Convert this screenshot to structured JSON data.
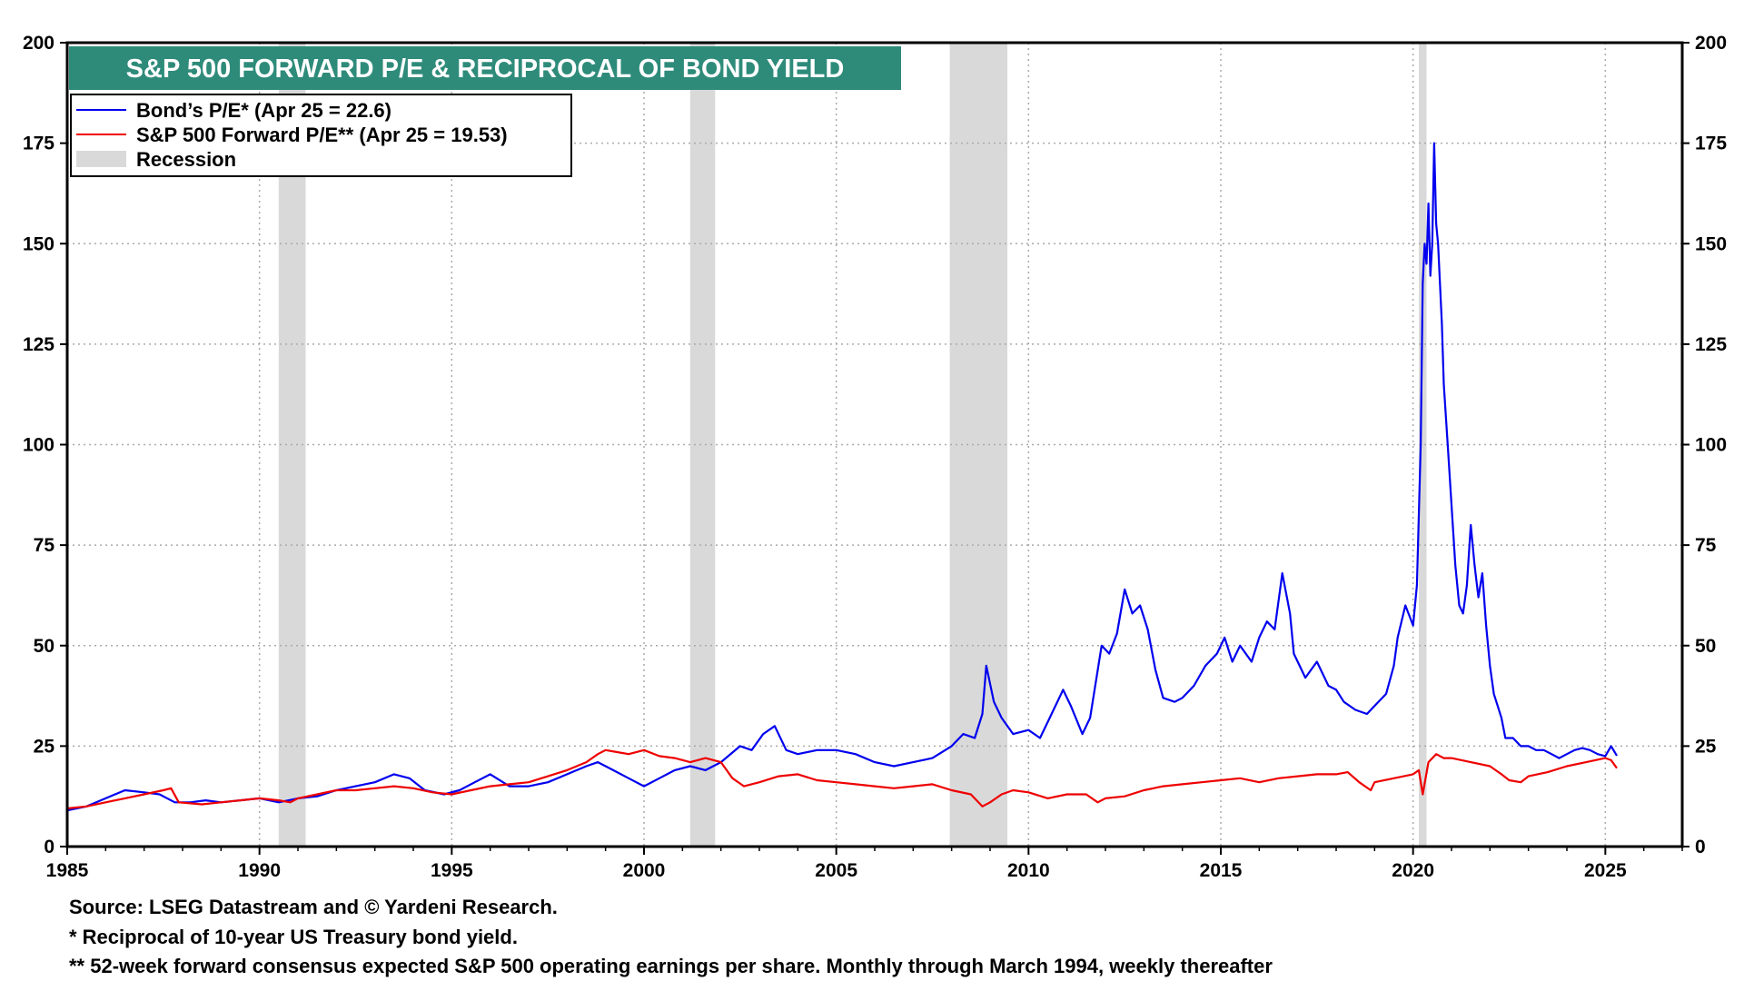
{
  "chart_data": {
    "type": "line",
    "title": "S&P 500 FORWARD P/E & RECIPROCAL OF BOND YIELD",
    "xlim": [
      1985,
      2027
    ],
    "ylim": [
      0,
      200
    ],
    "x_ticks": [
      1985,
      1990,
      1995,
      2000,
      2005,
      2010,
      2015,
      2020,
      2025
    ],
    "y_ticks": [
      0,
      25,
      50,
      75,
      100,
      125,
      150,
      175,
      200
    ],
    "grid": true,
    "legend_position": "top-left",
    "colors": {
      "bond": "#0000ee",
      "sp500": "#ee0000",
      "recession": "#d9d9d9",
      "title_bg": "#2e8b7a"
    },
    "legend": {
      "bond": "Bond’s P/E* (Apr 25 = 22.6)",
      "sp500": "S&P 500 Forward P/E**  (Apr 25 = 19.53)",
      "recession": "Recession"
    },
    "recessions": [
      [
        1990.5,
        1991.2
      ],
      [
        2001.2,
        2001.85
      ],
      [
        2007.95,
        2009.45
      ],
      [
        2020.15,
        2020.35
      ]
    ],
    "series": [
      {
        "name": "Bond’s P/E*",
        "x": [
          1985.0,
          1985.5,
          1986.0,
          1986.5,
          1987.0,
          1987.4,
          1987.8,
          1988.2,
          1988.6,
          1989.0,
          1989.5,
          1990.0,
          1990.5,
          1991.0,
          1991.5,
          1992.0,
          1992.5,
          1993.0,
          1993.5,
          1993.9,
          1994.3,
          1994.8,
          1995.2,
          1995.6,
          1996.0,
          1996.5,
          1997.0,
          1997.5,
          1998.0,
          1998.5,
          1998.8,
          1999.2,
          1999.6,
          2000.0,
          2000.4,
          2000.8,
          2001.2,
          2001.6,
          2002.0,
          2002.5,
          2002.8,
          2003.1,
          2003.4,
          2003.7,
          2004.0,
          2004.5,
          2005.0,
          2005.5,
          2006.0,
          2006.5,
          2007.0,
          2007.5,
          2008.0,
          2008.3,
          2008.6,
          2008.8,
          2008.9,
          2009.1,
          2009.3,
          2009.6,
          2010.0,
          2010.3,
          2010.6,
          2010.9,
          2011.1,
          2011.4,
          2011.6,
          2011.9,
          2012.1,
          2012.3,
          2012.5,
          2012.7,
          2012.9,
          2013.1,
          2013.3,
          2013.5,
          2013.8,
          2014.0,
          2014.3,
          2014.6,
          2014.9,
          2015.1,
          2015.3,
          2015.5,
          2015.8,
          2016.0,
          2016.2,
          2016.4,
          2016.6,
          2016.8,
          2016.9,
          2017.2,
          2017.5,
          2017.8,
          2018.0,
          2018.2,
          2018.5,
          2018.8,
          2019.0,
          2019.3,
          2019.5,
          2019.6,
          2019.8,
          2020.0,
          2020.1,
          2020.2,
          2020.25,
          2020.3,
          2020.35,
          2020.4,
          2020.45,
          2020.5,
          2020.55,
          2020.6,
          2020.65,
          2020.7,
          2020.75,
          2020.8,
          2020.9,
          2021.0,
          2021.1,
          2021.2,
          2021.3,
          2021.4,
          2021.5,
          2021.6,
          2021.7,
          2021.8,
          2021.9,
          2022.0,
          2022.1,
          2022.2,
          2022.3,
          2022.4,
          2022.6,
          2022.8,
          2023.0,
          2023.2,
          2023.4,
          2023.6,
          2023.8,
          2024.0,
          2024.2,
          2024.4,
          2024.6,
          2024.8,
          2025.0,
          2025.15,
          2025.3
        ],
        "values": [
          9,
          10,
          12,
          14,
          13.5,
          13,
          11,
          11,
          11.5,
          11,
          11.5,
          12,
          11,
          12,
          12.5,
          14,
          15,
          16,
          18,
          17,
          14,
          13,
          14,
          16,
          18,
          15,
          15,
          16,
          18,
          20,
          21,
          19,
          17,
          15,
          17,
          19,
          20,
          19,
          21,
          25,
          24,
          28,
          30,
          24,
          23,
          24,
          24,
          23,
          21,
          20,
          21,
          22,
          25,
          28,
          27,
          33,
          45,
          36,
          32,
          28,
          29,
          27,
          33,
          39,
          35,
          28,
          32,
          50,
          48,
          53,
          64,
          58,
          60,
          54,
          44,
          37,
          36,
          37,
          40,
          45,
          48,
          52,
          46,
          50,
          46,
          52,
          56,
          54,
          68,
          58,
          48,
          42,
          46,
          40,
          39,
          36,
          34,
          33,
          35,
          38,
          45,
          52,
          60,
          55,
          65,
          100,
          140,
          150,
          145,
          160,
          142,
          150,
          175,
          155,
          150,
          140,
          130,
          115,
          100,
          85,
          70,
          60,
          58,
          65,
          80,
          70,
          62,
          68,
          55,
          45,
          38,
          35,
          32,
          27,
          27,
          25,
          25,
          24,
          24,
          23,
          22,
          23,
          24,
          24.5,
          24,
          23,
          22.5,
          25,
          22.6
        ]
      },
      {
        "name": "S&P 500 Forward P/E**",
        "x": [
          1985.0,
          1985.5,
          1986.0,
          1986.5,
          1987.0,
          1987.5,
          1987.7,
          1987.9,
          1988.5,
          1989.0,
          1989.5,
          1990.0,
          1990.5,
          1990.8,
          1991.0,
          1991.5,
          1992.0,
          1992.5,
          1993.0,
          1993.5,
          1994.0,
          1994.5,
          1995.0,
          1995.5,
          1996.0,
          1996.5,
          1997.0,
          1997.5,
          1998.0,
          1998.5,
          1998.8,
          1999.0,
          1999.3,
          1999.6,
          2000.0,
          2000.4,
          2000.8,
          2001.2,
          2001.6,
          2002.0,
          2002.3,
          2002.6,
          2003.0,
          2003.5,
          2004.0,
          2004.5,
          2005.0,
          2005.5,
          2006.0,
          2006.5,
          2007.0,
          2007.5,
          2008.0,
          2008.5,
          2008.8,
          2009.0,
          2009.3,
          2009.6,
          2010.0,
          2010.5,
          2011.0,
          2011.5,
          2011.8,
          2012.0,
          2012.5,
          2013.0,
          2013.5,
          2014.0,
          2014.5,
          2015.0,
          2015.5,
          2016.0,
          2016.5,
          2017.0,
          2017.5,
          2018.0,
          2018.3,
          2018.6,
          2018.9,
          2019.0,
          2019.5,
          2020.0,
          2020.15,
          2020.25,
          2020.4,
          2020.6,
          2020.8,
          2021.0,
          2021.5,
          2022.0,
          2022.3,
          2022.5,
          2022.8,
          2023.0,
          2023.5,
          2024.0,
          2024.5,
          2025.0,
          2025.15,
          2025.3
        ],
        "values": [
          9.5,
          10,
          11,
          12,
          13,
          14,
          14.5,
          11,
          10.5,
          11,
          11.5,
          12,
          11.5,
          11,
          12,
          13,
          14,
          14,
          14.5,
          15,
          14.5,
          13.5,
          13,
          14,
          15,
          15.5,
          16,
          17.5,
          19,
          21,
          23,
          24,
          23.5,
          23,
          24,
          22.5,
          22,
          21,
          22,
          21,
          17,
          15,
          16,
          17.5,
          18,
          16.5,
          16,
          15.5,
          15,
          14.5,
          15,
          15.5,
          14,
          13,
          10,
          11,
          13,
          14,
          13.5,
          12,
          13,
          13,
          11,
          12,
          12.5,
          14,
          15,
          15.5,
          16,
          16.5,
          17,
          16,
          17,
          17.5,
          18,
          18,
          18.5,
          16,
          14,
          16,
          17,
          18,
          19,
          13,
          21,
          23,
          22,
          22,
          21,
          20,
          18,
          16.5,
          16,
          17.5,
          18.5,
          20,
          21,
          22,
          21.5,
          19.5
        ]
      }
    ],
    "source": "Source: LSEG Datastream and © Yardeni Research.",
    "footnotes": [
      "* Reciprocal of 10-year US Treasury bond yield.",
      "** 52-week forward consensus expected S&P 500 operating earnings per share. Monthly through March 1994, weekly thereafter"
    ]
  }
}
